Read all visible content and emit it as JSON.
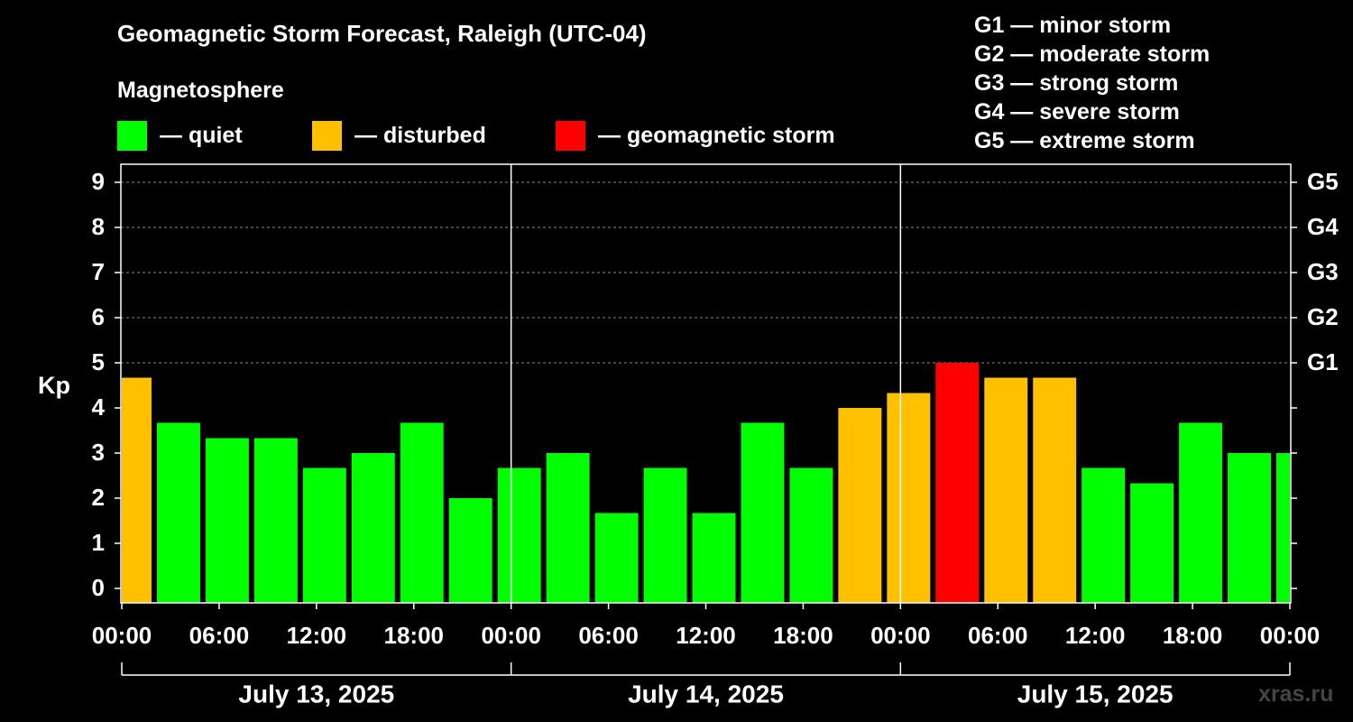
{
  "header": {
    "title": "Geomagnetic Storm Forecast, Raleigh (UTC-04)",
    "subtitle": "Magnetosphere"
  },
  "legend": [
    {
      "label": "— quiet",
      "color": "#00ff00"
    },
    {
      "label": "— disturbed",
      "color": "#ffc000"
    },
    {
      "label": "— geomagnetic storm",
      "color": "#ff0000"
    }
  ],
  "g_scale": [
    "G1 — minor storm",
    "G2 — moderate storm",
    "G3 — strong storm",
    "G4 — severe storm",
    "G5 — extreme storm"
  ],
  "watermark": "xras.ru",
  "chart_data": {
    "type": "bar",
    "title": "Geomagnetic Storm Forecast, Raleigh (UTC-04)",
    "ylabel": "Kp",
    "ylim": [
      -0.3,
      9.4
    ],
    "yticks": [
      0,
      1,
      2,
      3,
      4,
      5,
      6,
      7,
      8,
      9
    ],
    "y2ticks": [
      {
        "value": 5,
        "label": "G1"
      },
      {
        "value": 6,
        "label": "G2"
      },
      {
        "value": 7,
        "label": "G3"
      },
      {
        "value": 8,
        "label": "G4"
      },
      {
        "value": 9,
        "label": "G5"
      }
    ],
    "x_range_hours": [
      0,
      72
    ],
    "xticks": [
      {
        "hour": 0,
        "label": "00:00"
      },
      {
        "hour": 6,
        "label": "06:00"
      },
      {
        "hour": 12,
        "label": "12:00"
      },
      {
        "hour": 18,
        "label": "18:00"
      },
      {
        "hour": 24,
        "label": "00:00"
      },
      {
        "hour": 30,
        "label": "06:00"
      },
      {
        "hour": 36,
        "label": "12:00"
      },
      {
        "hour": 42,
        "label": "18:00"
      },
      {
        "hour": 48,
        "label": "00:00"
      },
      {
        "hour": 54,
        "label": "06:00"
      },
      {
        "hour": 60,
        "label": "12:00"
      },
      {
        "hour": 66,
        "label": "18:00"
      },
      {
        "hour": 72,
        "label": "00:00"
      }
    ],
    "day_dividers_hours": [
      24,
      48
    ],
    "days": [
      {
        "label": "July 13, 2025",
        "start": 0,
        "end": 24
      },
      {
        "label": "July 14, 2025",
        "start": 24,
        "end": 48
      },
      {
        "label": "July 15, 2025",
        "start": 48,
        "end": 72
      }
    ],
    "grid": "dashed at G-scale levels",
    "bars": [
      {
        "start": 0,
        "end": 2,
        "kp": 4.67,
        "level": "disturbed"
      },
      {
        "start": 2,
        "end": 5,
        "kp": 3.67,
        "level": "quiet"
      },
      {
        "start": 5,
        "end": 8,
        "kp": 3.33,
        "level": "quiet"
      },
      {
        "start": 8,
        "end": 11,
        "kp": 3.33,
        "level": "quiet"
      },
      {
        "start": 11,
        "end": 14,
        "kp": 2.67,
        "level": "quiet"
      },
      {
        "start": 14,
        "end": 17,
        "kp": 3.0,
        "level": "quiet"
      },
      {
        "start": 17,
        "end": 20,
        "kp": 3.67,
        "level": "quiet"
      },
      {
        "start": 20,
        "end": 23,
        "kp": 2.0,
        "level": "quiet"
      },
      {
        "start": 23,
        "end": 26,
        "kp": 2.67,
        "level": "quiet"
      },
      {
        "start": 26,
        "end": 29,
        "kp": 3.0,
        "level": "quiet"
      },
      {
        "start": 29,
        "end": 32,
        "kp": 1.67,
        "level": "quiet"
      },
      {
        "start": 32,
        "end": 35,
        "kp": 2.67,
        "level": "quiet"
      },
      {
        "start": 35,
        "end": 38,
        "kp": 1.67,
        "level": "quiet"
      },
      {
        "start": 38,
        "end": 41,
        "kp": 3.67,
        "level": "quiet"
      },
      {
        "start": 41,
        "end": 44,
        "kp": 2.67,
        "level": "quiet"
      },
      {
        "start": 44,
        "end": 47,
        "kp": 4.0,
        "level": "disturbed"
      },
      {
        "start": 47,
        "end": 50,
        "kp": 4.33,
        "level": "disturbed"
      },
      {
        "start": 50,
        "end": 53,
        "kp": 5.0,
        "level": "storm"
      },
      {
        "start": 53,
        "end": 56,
        "kp": 4.67,
        "level": "disturbed"
      },
      {
        "start": 56,
        "end": 59,
        "kp": 4.67,
        "level": "disturbed"
      },
      {
        "start": 59,
        "end": 62,
        "kp": 2.67,
        "level": "quiet"
      },
      {
        "start": 62,
        "end": 65,
        "kp": 2.33,
        "level": "quiet"
      },
      {
        "start": 65,
        "end": 68,
        "kp": 3.67,
        "level": "quiet"
      },
      {
        "start": 68,
        "end": 71,
        "kp": 3.0,
        "level": "quiet"
      },
      {
        "start": 71,
        "end": 72,
        "kp": 3.0,
        "level": "quiet"
      }
    ],
    "colors": {
      "quiet": "#00ff00",
      "disturbed": "#ffc000",
      "storm": "#ff0000"
    }
  }
}
